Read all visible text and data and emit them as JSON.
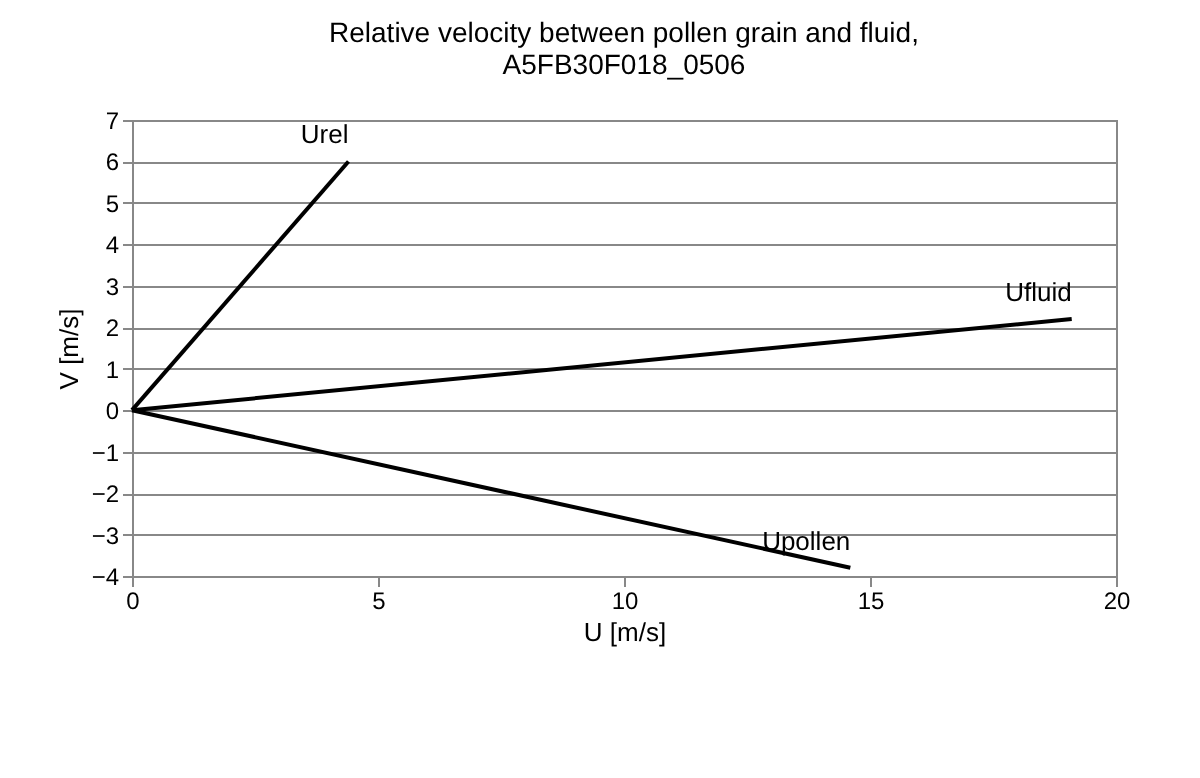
{
  "chart_data": {
    "type": "line",
    "title": "Relative velocity between pollen grain and fluid,\nA5FB30F018_0506",
    "xlabel": "U [m/s]",
    "ylabel": "V [m/s]",
    "series": [
      {
        "name": "Urel",
        "color": "#000000",
        "x": [
          0,
          4.4
        ],
        "values": [
          0,
          6
        ]
      },
      {
        "name": "Ufluid",
        "color": "#000000",
        "x": [
          0,
          19.1
        ],
        "values": [
          0,
          2.2
        ]
      },
      {
        "name": "Upollen",
        "color": "#000000",
        "x": [
          0,
          14.6
        ],
        "values": [
          0,
          -3.8
        ]
      }
    ],
    "xlim": [
      0,
      20
    ],
    "xticks": [
      0,
      5,
      10,
      15,
      20
    ],
    "ylim": [
      -4,
      7
    ],
    "yticks": [
      -4,
      -3,
      -2,
      -1,
      0,
      1,
      2,
      3,
      4,
      5,
      6,
      7
    ],
    "grid": "y",
    "legend": false,
    "marker": "none",
    "line_style": "solid"
  }
}
